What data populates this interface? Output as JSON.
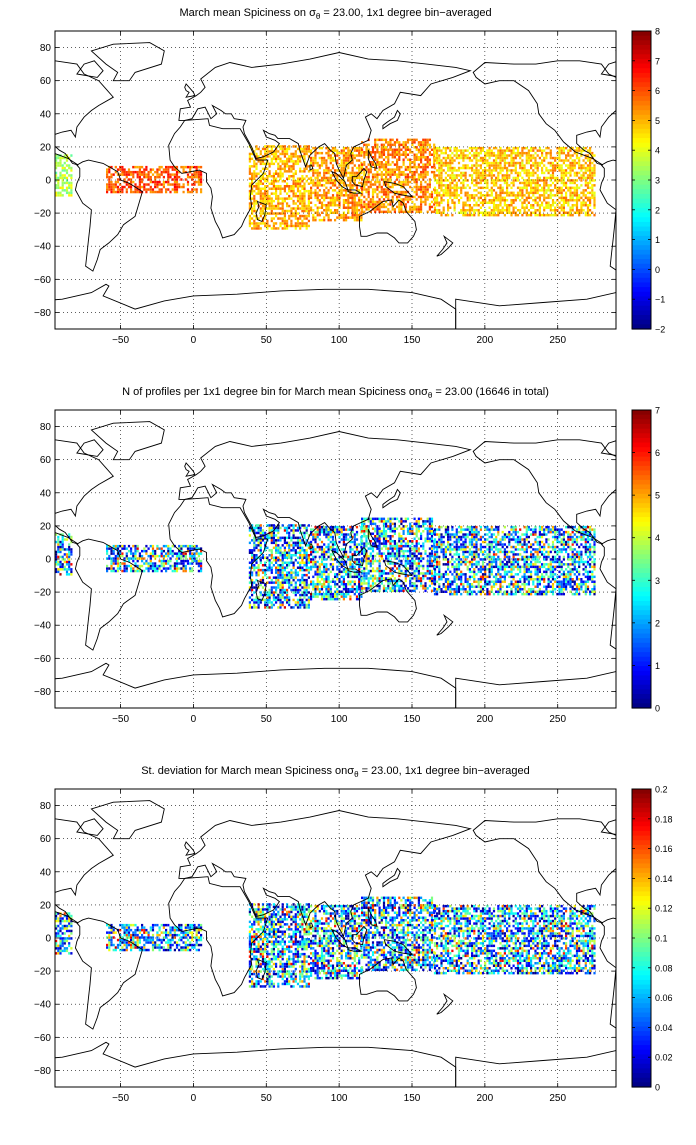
{
  "chart_data": [
    {
      "type": "heatmap",
      "title_prefix": "March mean Spiciness on ",
      "title_symbol": "σ",
      "title_subscript": "θ",
      "title_suffix": " = 23.00, 1x1 degree bin−averaged",
      "x_ticks": [
        -50,
        0,
        50,
        100,
        150,
        200,
        250
      ],
      "y_ticks": [
        80,
        60,
        40,
        20,
        0,
        -20,
        -40,
        -60,
        -80
      ],
      "xlim": [
        -95,
        290
      ],
      "ylim": [
        -90,
        90
      ],
      "grid": true,
      "colorbar": {
        "range": [
          -2,
          8
        ],
        "ticks": [
          8,
          7,
          6,
          5,
          4,
          3,
          2,
          1,
          0,
          -1,
          -2
        ],
        "colormap": "jet"
      },
      "data_regions": [
        {
          "lon": [
            -95,
            -84
          ],
          "lat": [
            -10,
            15
          ],
          "value": 3.5
        },
        {
          "lon": [
            -60,
            5
          ],
          "lat": [
            -8,
            8
          ],
          "value": 5.9
        },
        {
          "lon": [
            38,
            80
          ],
          "lat": [
            -30,
            20
          ],
          "value": 5.0
        },
        {
          "lon": [
            80,
            115
          ],
          "lat": [
            -25,
            20
          ],
          "value": 5.2
        },
        {
          "lon": [
            115,
            165
          ],
          "lat": [
            -20,
            25
          ],
          "value": 5.4
        },
        {
          "lon": [
            165,
            275
          ],
          "lat": [
            -22,
            20
          ],
          "value": 4.8
        }
      ]
    },
    {
      "type": "heatmap",
      "title_prefix": "N of profiles per 1x1 degree bin for March mean Spiciness on",
      "title_symbol": "σ",
      "title_subscript": "θ",
      "title_suffix": " = 23.00 (16646 in total)",
      "x_ticks": [
        -50,
        0,
        50,
        100,
        150,
        200,
        250
      ],
      "y_ticks": [
        80,
        60,
        40,
        20,
        0,
        -20,
        -40,
        -60,
        -80
      ],
      "xlim": [
        -95,
        290
      ],
      "ylim": [
        -90,
        90
      ],
      "grid": true,
      "colorbar": {
        "range": [
          0,
          7
        ],
        "ticks": [
          7,
          6,
          5,
          4,
          3,
          2,
          1,
          0
        ],
        "colormap": "jet"
      },
      "data_regions": [
        {
          "lon": [
            -95,
            -84
          ],
          "lat": [
            -10,
            15
          ],
          "value": 2.5
        },
        {
          "lon": [
            -60,
            5
          ],
          "lat": [
            -8,
            8
          ],
          "value": 2.5
        },
        {
          "lon": [
            38,
            80
          ],
          "lat": [
            -30,
            20
          ],
          "value": 2.8
        },
        {
          "lon": [
            80,
            115
          ],
          "lat": [
            -25,
            20
          ],
          "value": 3.0
        },
        {
          "lon": [
            115,
            165
          ],
          "lat": [
            -20,
            25
          ],
          "value": 3.2
        },
        {
          "lon": [
            165,
            275
          ],
          "lat": [
            -22,
            20
          ],
          "value": 3.0
        }
      ]
    },
    {
      "type": "heatmap",
      "title_prefix": "St. deviation for March mean Spiciness on",
      "title_symbol": "σ",
      "title_subscript": "θ",
      "title_suffix": " = 23.00, 1x1 degree bin−averaged",
      "x_ticks": [
        -50,
        0,
        50,
        100,
        150,
        200,
        250
      ],
      "y_ticks": [
        80,
        60,
        40,
        20,
        0,
        -20,
        -40,
        -60,
        -80
      ],
      "xlim": [
        -95,
        290
      ],
      "ylim": [
        -90,
        90
      ],
      "grid": true,
      "colorbar": {
        "range": [
          0,
          0.2
        ],
        "ticks": [
          0.2,
          0.18,
          0.16,
          0.14,
          0.12,
          0.1,
          0.08,
          0.06,
          0.04,
          0.02,
          0
        ],
        "colormap": "jet"
      },
      "data_regions": [
        {
          "lon": [
            -95,
            -84
          ],
          "lat": [
            -10,
            15
          ],
          "value": 0.1
        },
        {
          "lon": [
            -60,
            5
          ],
          "lat": [
            -8,
            8
          ],
          "value": 0.1
        },
        {
          "lon": [
            38,
            80
          ],
          "lat": [
            -30,
            20
          ],
          "value": 0.1
        },
        {
          "lon": [
            80,
            115
          ],
          "lat": [
            -25,
            20
          ],
          "value": 0.1
        },
        {
          "lon": [
            115,
            165
          ],
          "lat": [
            -20,
            25
          ],
          "value": 0.1
        },
        {
          "lon": [
            165,
            275
          ],
          "lat": [
            -22,
            20
          ],
          "value": 0.1
        }
      ]
    }
  ],
  "colors": {
    "coastline": "#000000",
    "grid": "#000000",
    "background": "#ffffff"
  }
}
